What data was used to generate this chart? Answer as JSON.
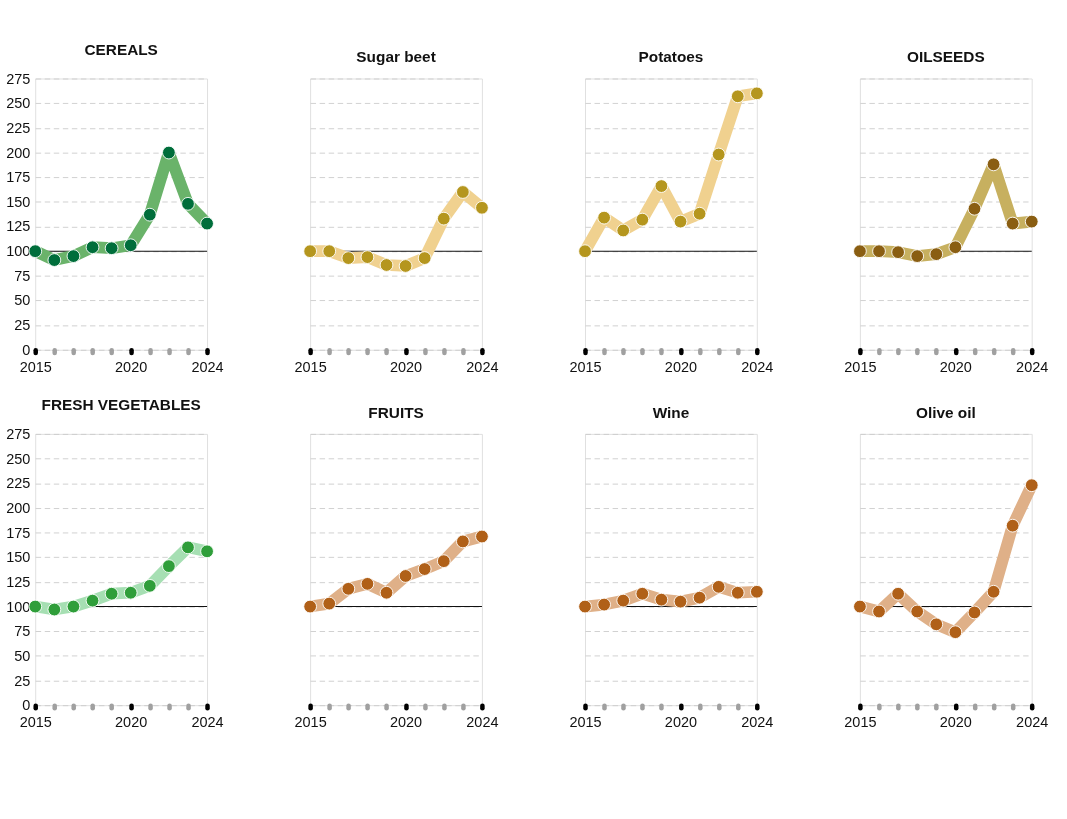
{
  "chart_data": [
    {
      "type": "line",
      "title": "CEREALS",
      "x": [
        2015,
        2016,
        2017,
        2018,
        2019,
        2020,
        2021,
        2022,
        2023,
        2024
      ],
      "values": [
        100,
        91,
        95,
        104,
        103,
        106,
        137,
        200,
        148,
        128
      ],
      "color": "#6ab36a",
      "colors": [
        "#006e3b",
        "#006e3b",
        "#006e3b",
        "#006e3b",
        "#006e3b",
        "#006e3b",
        "#006e3b",
        "#006e3b",
        "#006e3b",
        "#006e3b"
      ],
      "xlim": [
        2015,
        2024
      ],
      "ylim": [
        0,
        275
      ],
      "xticks": [
        2015,
        {
          "value": 2016,
          "label": null
        },
        {
          "value": 2017,
          "label": null
        },
        {
          "value": 2018,
          "label": null
        },
        {
          "value": 2019,
          "label": null
        },
        2020,
        {
          "value": 2021,
          "label": null
        },
        {
          "value": 2022,
          "label": null
        },
        {
          "value": 2023,
          "label": null
        },
        2024
      ],
      "yticks": [
        0,
        25,
        50,
        75,
        100,
        125,
        150,
        175,
        200,
        225,
        250,
        275
      ],
      "grid": "y",
      "marker": "circle",
      "ref_lines": [
        {
          "axis": "y",
          "value": 100
        }
      ]
    },
    {
      "type": "line",
      "title": "Sugar beet",
      "x": [
        2015,
        2016,
        2017,
        2018,
        2019,
        2020,
        2021,
        2022,
        2023,
        2024
      ],
      "values": [
        100,
        100,
        93,
        94,
        86,
        85,
        93,
        133,
        160,
        144
      ],
      "color": "#f0d18f",
      "colors": [
        "#b5961e",
        "#b5961e",
        "#b5961e",
        "#b5961e",
        "#b5961e",
        "#b5961e",
        "#b5961e",
        "#b5961e",
        "#b5961e",
        "#b5961e"
      ],
      "xlim": [
        2015,
        2024
      ],
      "ylim": [
        0,
        275
      ],
      "xticks": [
        2015,
        {
          "value": 2016,
          "label": null
        },
        {
          "value": 2017,
          "label": null
        },
        {
          "value": 2018,
          "label": null
        },
        {
          "value": 2019,
          "label": null
        },
        2020,
        {
          "value": 2021,
          "label": null
        },
        {
          "value": 2022,
          "label": null
        },
        {
          "value": 2023,
          "label": null
        },
        2024
      ],
      "yticks": [
        0,
        25,
        50,
        75,
        100,
        125,
        150,
        175,
        200,
        225,
        250,
        275
      ],
      "grid": "y",
      "marker": "circle",
      "ref_lines": [
        {
          "axis": "y",
          "value": 100
        }
      ],
      "tick_labels": "x"
    },
    {
      "type": "line",
      "title": "Potatoes",
      "x": [
        2015,
        2016,
        2017,
        2018,
        2019,
        2020,
        2021,
        2022,
        2023,
        2024
      ],
      "values": [
        100,
        134,
        121,
        132,
        166,
        130,
        138,
        198,
        257,
        260
      ],
      "color": "#f0d18f",
      "colors": [
        "#b5961e",
        "#b5961e",
        "#b5961e",
        "#b5961e",
        "#b5961e",
        "#b5961e",
        "#b5961e",
        "#b5961e",
        "#b5961e",
        "#b5961e"
      ],
      "xlim": [
        2015,
        2024
      ],
      "ylim": [
        0,
        275
      ],
      "xticks": [
        2015,
        {
          "value": 2016,
          "label": null
        },
        {
          "value": 2017,
          "label": null
        },
        {
          "value": 2018,
          "label": null
        },
        {
          "value": 2019,
          "label": null
        },
        2020,
        {
          "value": 2021,
          "label": null
        },
        {
          "value": 2022,
          "label": null
        },
        {
          "value": 2023,
          "label": null
        },
        2024
      ],
      "yticks": [
        0,
        25,
        50,
        75,
        100,
        125,
        150,
        175,
        200,
        225,
        250,
        275
      ],
      "grid": "y",
      "marker": "circle",
      "ref_lines": [
        {
          "axis": "y",
          "value": 100
        }
      ],
      "tick_labels": "x"
    },
    {
      "type": "line",
      "title": "OILSEEDS",
      "x": [
        2015,
        2016,
        2017,
        2018,
        2019,
        2020,
        2021,
        2022,
        2023,
        2024
      ],
      "values": [
        100,
        100,
        99,
        95,
        97,
        104,
        143,
        188,
        128,
        130
      ],
      "color": "#c7b05f",
      "colors": [
        "#8a5e12",
        "#8a5e12",
        "#8a5e12",
        "#8a5e12",
        "#8a5e12",
        "#8a5e12",
        "#8a5e12",
        "#8a5e12",
        "#8a5e12",
        "#8a5e12"
      ],
      "xlim": [
        2015,
        2024
      ],
      "ylim": [
        0,
        275
      ],
      "xticks": [
        2015,
        {
          "value": 2016,
          "label": null
        },
        {
          "value": 2017,
          "label": null
        },
        {
          "value": 2018,
          "label": null
        },
        {
          "value": 2019,
          "label": null
        },
        2020,
        {
          "value": 2021,
          "label": null
        },
        {
          "value": 2022,
          "label": null
        },
        {
          "value": 2023,
          "label": null
        },
        2024
      ],
      "yticks": [
        0,
        25,
        50,
        75,
        100,
        125,
        150,
        175,
        200,
        225,
        250,
        275
      ],
      "grid": "y",
      "marker": "circle",
      "ref_lines": [
        {
          "axis": "y",
          "value": 100
        }
      ],
      "tick_labels": "x"
    },
    {
      "type": "line",
      "title": "FRESH VEGETABLES",
      "x": [
        2015,
        2016,
        2017,
        2018,
        2019,
        2020,
        2021,
        2022,
        2023,
        2024
      ],
      "values": [
        100,
        97,
        100,
        106,
        113,
        114,
        121,
        141,
        160,
        156
      ],
      "color": "#a6dfb3",
      "colors": [
        "#2f9e3a",
        "#2f9e3a",
        "#2f9e3a",
        "#2f9e3a",
        "#2f9e3a",
        "#2f9e3a",
        "#2f9e3a",
        "#2f9e3a",
        "#2f9e3a",
        "#2f9e3a"
      ],
      "xlim": [
        2015,
        2024
      ],
      "ylim": [
        0,
        275
      ],
      "xticks": [
        2015,
        {
          "value": 2016,
          "label": null
        },
        {
          "value": 2017,
          "label": null
        },
        {
          "value": 2018,
          "label": null
        },
        {
          "value": 2019,
          "label": null
        },
        2020,
        {
          "value": 2021,
          "label": null
        },
        {
          "value": 2022,
          "label": null
        },
        {
          "value": 2023,
          "label": null
        },
        2024
      ],
      "yticks": [
        0,
        25,
        50,
        75,
        100,
        125,
        150,
        175,
        200,
        225,
        250,
        275
      ],
      "grid": "y",
      "marker": "circle",
      "ref_lines": [
        {
          "axis": "y",
          "value": 100
        }
      ]
    },
    {
      "type": "line",
      "title": "FRUITS",
      "x": [
        2015,
        2016,
        2017,
        2018,
        2019,
        2020,
        2021,
        2022,
        2023,
        2024
      ],
      "values": [
        100,
        103,
        118,
        123,
        114,
        131,
        138,
        146,
        166,
        171
      ],
      "color": "#dfb088",
      "colors": [
        "#b06018",
        "#b06018",
        "#b06018",
        "#b06018",
        "#b06018",
        "#b06018",
        "#b06018",
        "#b06018",
        "#b06018",
        "#b06018"
      ],
      "xlim": [
        2015,
        2024
      ],
      "ylim": [
        0,
        275
      ],
      "xticks": [
        2015,
        {
          "value": 2016,
          "label": null
        },
        {
          "value": 2017,
          "label": null
        },
        {
          "value": 2018,
          "label": null
        },
        {
          "value": 2019,
          "label": null
        },
        2020,
        {
          "value": 2021,
          "label": null
        },
        {
          "value": 2022,
          "label": null
        },
        {
          "value": 2023,
          "label": null
        },
        2024
      ],
      "yticks": [
        0,
        25,
        50,
        75,
        100,
        125,
        150,
        175,
        200,
        225,
        250,
        275
      ],
      "grid": "y",
      "marker": "circle",
      "ref_lines": [
        {
          "axis": "y",
          "value": 100
        }
      ],
      "tick_labels": "x"
    },
    {
      "type": "line",
      "title": "Wine",
      "x": [
        2015,
        2016,
        2017,
        2018,
        2019,
        2020,
        2021,
        2022,
        2023,
        2024
      ],
      "values": [
        100,
        102,
        106,
        113,
        107,
        105,
        109,
        120,
        114,
        115
      ],
      "color": "#dfb088",
      "colors": [
        "#b06018",
        "#b06018",
        "#b06018",
        "#b06018",
        "#b06018",
        "#b06018",
        "#b06018",
        "#b06018",
        "#b06018",
        "#b06018"
      ],
      "xlim": [
        2015,
        2024
      ],
      "ylim": [
        0,
        275
      ],
      "xticks": [
        2015,
        {
          "value": 2016,
          "label": null
        },
        {
          "value": 2017,
          "label": null
        },
        {
          "value": 2018,
          "label": null
        },
        {
          "value": 2019,
          "label": null
        },
        2020,
        {
          "value": 2021,
          "label": null
        },
        {
          "value": 2022,
          "label": null
        },
        {
          "value": 2023,
          "label": null
        },
        2024
      ],
      "yticks": [
        0,
        25,
        50,
        75,
        100,
        125,
        150,
        175,
        200,
        225,
        250,
        275
      ],
      "grid": "y",
      "marker": "circle",
      "ref_lines": [
        {
          "axis": "y",
          "value": 100
        }
      ],
      "tick_labels": "x"
    },
    {
      "type": "line",
      "title": "Olive oil",
      "x": [
        2015,
        2016,
        2017,
        2018,
        2019,
        2020,
        2021,
        2022,
        2023,
        2024
      ],
      "values": [
        100,
        95,
        113,
        95,
        82,
        74,
        94,
        115,
        182,
        223
      ],
      "color": "#dfb088",
      "colors": [
        "#b06018",
        "#b06018",
        "#b06018",
        "#b06018",
        "#b06018",
        "#b06018",
        "#b06018",
        "#b06018",
        "#b06018",
        "#b06018"
      ],
      "xlim": [
        2015,
        2024
      ],
      "ylim": [
        0,
        275
      ],
      "xticks": [
        2015,
        {
          "value": 2016,
          "label": null
        },
        {
          "value": 2017,
          "label": null
        },
        {
          "value": 2018,
          "label": null
        },
        {
          "value": 2019,
          "label": null
        },
        2020,
        {
          "value": 2021,
          "label": null
        },
        {
          "value": 2022,
          "label": null
        },
        {
          "value": 2023,
          "label": null
        },
        2024
      ],
      "yticks": [
        0,
        25,
        50,
        75,
        100,
        125,
        150,
        175,
        200,
        225,
        250,
        275
      ],
      "grid": "y",
      "marker": "circle",
      "ref_lines": [
        {
          "axis": "y",
          "value": 100
        }
      ],
      "tick_labels": "x"
    }
  ]
}
